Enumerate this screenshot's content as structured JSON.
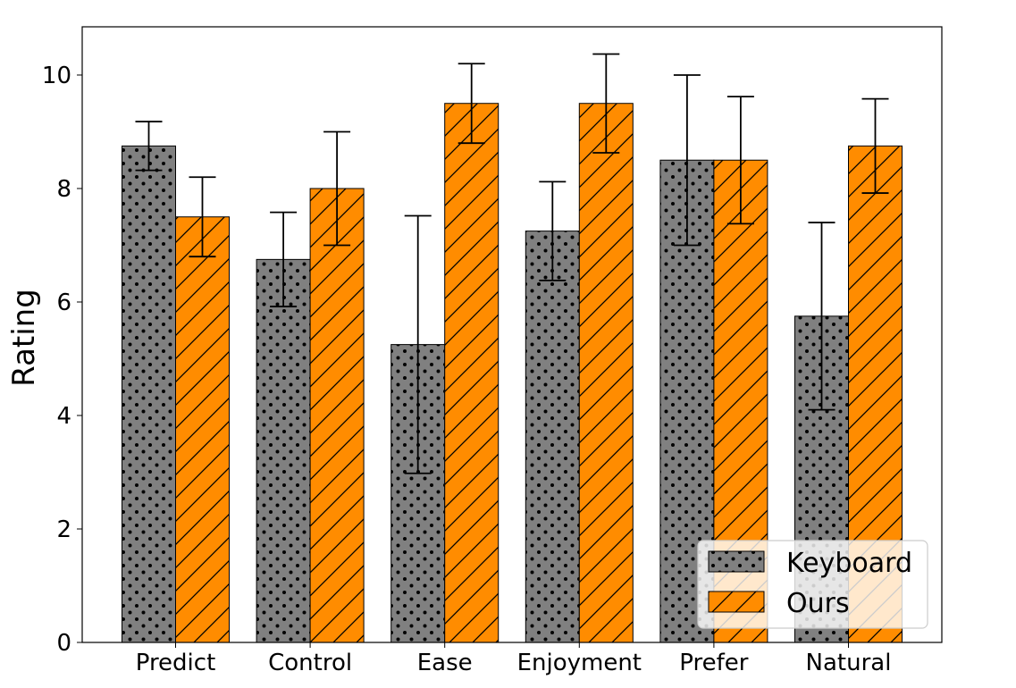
{
  "chart_data": {
    "type": "bar",
    "title": "",
    "xlabel": "",
    "ylabel": "Rating",
    "ylim": [
      0,
      10.85
    ],
    "yticks": [
      0,
      2,
      4,
      6,
      8,
      10
    ],
    "categories": [
      "Predict",
      "Control",
      "Ease",
      "Enjoyment",
      "Prefer",
      "Natural"
    ],
    "series": [
      {
        "name": "Keyboard",
        "color": "#808080",
        "hatch": "dots",
        "values": [
          8.75,
          6.75,
          5.25,
          7.25,
          8.5,
          5.75
        ],
        "errors": [
          0.43,
          0.83,
          2.27,
          0.87,
          1.5,
          1.65
        ]
      },
      {
        "name": "Ours",
        "color": "#ff8c00",
        "hatch": "diagonal",
        "values": [
          7.5,
          8.0,
          9.5,
          9.5,
          8.5,
          8.75
        ],
        "errors": [
          0.7,
          1.0,
          0.7,
          0.87,
          1.12,
          0.83
        ]
      }
    ],
    "legend": {
      "position": "lower-right",
      "labels": [
        "Keyboard",
        "Ours"
      ]
    }
  }
}
